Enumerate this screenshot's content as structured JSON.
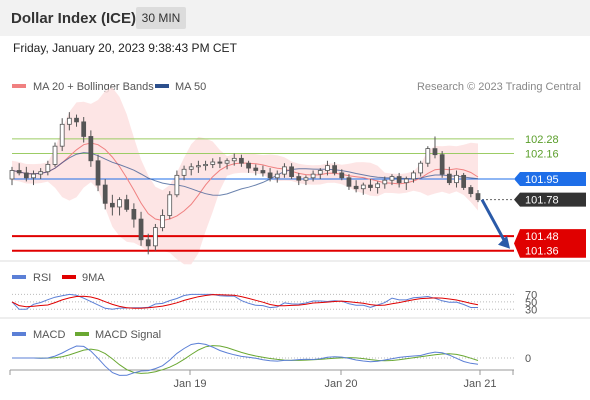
{
  "header": {
    "title": "Dollar Index (ICE)",
    "interval": "30 MIN"
  },
  "timestamp": "Friday, January 20, 2023 9:38:43 PM CET",
  "legend": {
    "ma20": "MA 20 + Bollinger Bands",
    "ma50": "MA 50",
    "credit": "Research © 2023 Trading Central",
    "rsi": "RSI",
    "rsi_ma": "9MA",
    "macd": "MACD",
    "macd_signal": "MACD Signal"
  },
  "colors": {
    "ma20": "#f08080",
    "ma50": "#2c4f8c",
    "band_fill": "#fde0e0",
    "support": "#e00000",
    "resistance": "#9ccc65",
    "pivot": "#1e6ee8",
    "last_price_tag": "#333333",
    "rsi_line": "#5b7fd6",
    "rsi_ma": "#e00000",
    "macd_line": "#5b7fd6",
    "signal_line": "#6aa832",
    "candle": "#555555",
    "arrow": "#2a5aa8"
  },
  "chart_data": [
    {
      "type": "candlestick",
      "price_levels": {
        "resistance": [
          102.28,
          102.16
        ],
        "pivot": 101.95,
        "last": 101.78,
        "support": [
          101.48,
          101.36
        ]
      },
      "price_labels": [
        "102.28",
        "102.16",
        "101.95",
        "101.78",
        "101.48",
        "101.36"
      ],
      "x_ticks": [
        "Jan 19",
        "Jan 20",
        "Jan 21"
      ],
      "ohlc_approx": [
        [
          101.95,
          102.05,
          101.9,
          102.02
        ],
        [
          102.02,
          102.08,
          101.98,
          102.0
        ],
        [
          102.0,
          102.05,
          101.93,
          101.96
        ],
        [
          101.96,
          102.02,
          101.9,
          101.99
        ],
        [
          101.99,
          102.04,
          101.95,
          102.01
        ],
        [
          102.01,
          102.1,
          101.98,
          102.07
        ],
        [
          102.07,
          102.25,
          102.05,
          102.22
        ],
        [
          102.22,
          102.45,
          102.18,
          102.4
        ],
        [
          102.4,
          102.5,
          102.35,
          102.45
        ],
        [
          102.45,
          102.48,
          102.38,
          102.42
        ],
        [
          102.42,
          102.46,
          102.25,
          102.3
        ],
        [
          102.3,
          102.35,
          102.05,
          102.1
        ],
        [
          102.1,
          102.15,
          101.85,
          101.9
        ],
        [
          101.9,
          101.95,
          101.7,
          101.75
        ],
        [
          101.75,
          101.82,
          101.65,
          101.72
        ],
        [
          101.72,
          101.8,
          101.65,
          101.78
        ],
        [
          101.78,
          101.82,
          101.68,
          101.7
        ],
        [
          101.7,
          101.75,
          101.55,
          101.62
        ],
        [
          101.62,
          101.68,
          101.4,
          101.45
        ],
        [
          101.45,
          101.5,
          101.33,
          101.4
        ],
        [
          101.4,
          101.58,
          101.36,
          101.55
        ],
        [
          101.55,
          101.7,
          101.52,
          101.65
        ],
        [
          101.65,
          101.85,
          101.62,
          101.82
        ],
        [
          101.82,
          102.02,
          101.8,
          101.98
        ],
        [
          101.98,
          102.06,
          101.94,
          102.03
        ],
        [
          102.03,
          102.08,
          101.98,
          102.05
        ],
        [
          102.05,
          102.1,
          102.0,
          102.06
        ],
        [
          102.06,
          102.1,
          102.02,
          102.07
        ],
        [
          102.07,
          102.12,
          102.04,
          102.09
        ],
        [
          102.09,
          102.13,
          102.04,
          102.08
        ],
        [
          102.08,
          102.12,
          102.03,
          102.1
        ],
        [
          102.1,
          102.16,
          102.06,
          102.12
        ],
        [
          102.12,
          102.15,
          102.05,
          102.08
        ],
        [
          102.08,
          102.1,
          102.0,
          102.04
        ],
        [
          102.04,
          102.07,
          101.98,
          102.02
        ],
        [
          102.02,
          102.06,
          101.97,
          102.0
        ],
        [
          102.0,
          102.04,
          101.93,
          101.96
        ],
        [
          101.96,
          102.02,
          101.92,
          101.99
        ],
        [
          101.99,
          102.08,
          101.96,
          102.05
        ],
        [
          102.05,
          102.08,
          101.95,
          101.97
        ],
        [
          101.97,
          102.0,
          101.9,
          101.94
        ],
        [
          101.94,
          101.98,
          101.9,
          101.96
        ],
        [
          101.96,
          102.02,
          101.93,
          101.99
        ],
        [
          101.99,
          102.04,
          101.95,
          102.02
        ],
        [
          102.02,
          102.1,
          101.98,
          102.06
        ],
        [
          102.06,
          102.09,
          101.98,
          102.0
        ],
        [
          102.0,
          102.03,
          101.94,
          101.96
        ],
        [
          101.96,
          101.99,
          101.86,
          101.89
        ],
        [
          101.89,
          101.94,
          101.84,
          101.87
        ],
        [
          101.87,
          101.92,
          101.82,
          101.9
        ],
        [
          101.9,
          101.95,
          101.85,
          101.88
        ],
        [
          101.88,
          101.93,
          101.83,
          101.91
        ],
        [
          101.91,
          101.97,
          101.87,
          101.94
        ],
        [
          101.94,
          101.99,
          101.9,
          101.97
        ],
        [
          101.97,
          102.0,
          101.88,
          101.92
        ],
        [
          101.92,
          101.97,
          101.86,
          101.95
        ],
        [
          101.95,
          102.02,
          101.92,
          102.0
        ],
        [
          102.0,
          102.1,
          101.97,
          102.08
        ],
        [
          102.08,
          102.22,
          102.05,
          102.2
        ],
        [
          102.2,
          102.3,
          102.12,
          102.15
        ],
        [
          102.15,
          102.18,
          101.96,
          101.99
        ],
        [
          101.99,
          102.05,
          101.9,
          101.92
        ],
        [
          101.92,
          102.02,
          101.88,
          101.98
        ],
        [
          101.98,
          102.0,
          101.86,
          101.88
        ],
        [
          101.88,
          101.9,
          101.8,
          101.83
        ],
        [
          101.83,
          101.86,
          101.76,
          101.78
        ]
      ]
    },
    {
      "type": "line",
      "name": "RSI",
      "levels": [
        70,
        50,
        30
      ],
      "level_labels": [
        "70",
        "50",
        "30"
      ]
    },
    {
      "type": "line",
      "name": "MACD",
      "levels": [
        0
      ],
      "level_labels": [
        "0"
      ]
    }
  ]
}
